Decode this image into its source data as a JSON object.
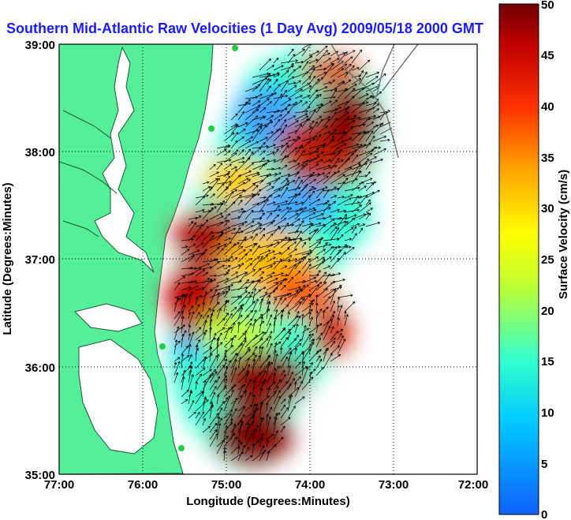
{
  "title": "Southern Mid-Atlantic Raw Velocities (1 Day Avg) 2009/05/18 2000 GMT",
  "xlabel": "Longitude (Degrees:Minutes)",
  "ylabel": "Latitude (Degrees:Minutes)",
  "x_ticks": [
    "77:00",
    "76:00",
    "75:00",
    "74:00",
    "73:00",
    "72:00"
  ],
  "y_ticks": [
    "39:00",
    "38:00",
    "37:00",
    "36:00",
    "35:00"
  ],
  "colorbar": {
    "label": "Surface Velocity (cm/s)",
    "ticks": [
      "50",
      "45",
      "40",
      "35",
      "30",
      "25",
      "20",
      "15",
      "10",
      "5",
      "0"
    ],
    "colors": [
      "#1060ff",
      "#00c8ff",
      "#30ffd0",
      "#c0ff30",
      "#ffff00",
      "#ffa000",
      "#ff3000",
      "#c00000",
      "#700000"
    ]
  },
  "colors": {
    "land": "#55ee99",
    "water": "#ffffff",
    "arrow": "#000000",
    "station": "#22cc44"
  },
  "chart_data": {
    "type": "heatmap",
    "title": "Southern Mid-Atlantic Raw Velocities (1 Day Avg) 2009/05/18 2000 GMT",
    "xlabel": "Longitude (Degrees:Minutes)",
    "ylabel": "Latitude (Degrees:Minutes)",
    "xlim": [
      -77,
      -72
    ],
    "ylim": [
      35,
      39
    ],
    "clim": [
      0,
      50
    ],
    "units": "cm/s",
    "grid": true
  }
}
